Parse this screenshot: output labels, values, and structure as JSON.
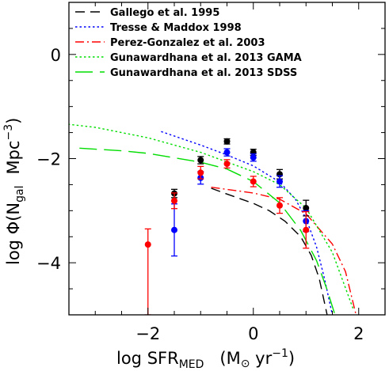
{
  "chart_data": {
    "type": "line",
    "xlabel": "log SFR_MED (M_sun yr^-1)",
    "ylabel": "log Phi(N_gal Mpc^-3)",
    "xlim": [
      -3.5,
      2.5
    ],
    "ylim": [
      -5.0,
      1.0
    ],
    "x_ticks": [
      -2,
      0,
      2
    ],
    "y_ticks": [
      0,
      -2,
      -4
    ],
    "x_tick_labels": [
      "−2",
      "0",
      "2"
    ],
    "y_tick_labels": [
      "0",
      "−2",
      "−4"
    ],
    "legend_position": "top",
    "series": [
      {
        "name": "Gallego et al. 1995",
        "color": "#000000",
        "style": "dashed",
        "x": [
          -0.8,
          -0.5,
          0.0,
          0.3,
          0.6,
          0.9,
          1.1,
          1.25,
          1.4
        ],
        "y": [
          -2.57,
          -2.68,
          -2.86,
          -3.0,
          -3.2,
          -3.5,
          -3.86,
          -4.3,
          -5.0
        ]
      },
      {
        "name": "Tresse & Maddox 1998",
        "color": "#0000ff",
        "style": "dotted",
        "x": [
          -1.75,
          -1.0,
          -0.5,
          0.0,
          0.5,
          0.8,
          1.0,
          1.2,
          1.35,
          1.5
        ],
        "y": [
          -1.48,
          -1.74,
          -1.93,
          -2.14,
          -2.45,
          -2.78,
          -3.15,
          -3.7,
          -4.3,
          -5.0
        ]
      },
      {
        "name": "Perez-Gonzalez et al. 2003",
        "color": "#ff0000",
        "style": "dashdot",
        "x": [
          -0.8,
          0.0,
          0.5,
          1.0,
          1.5,
          1.75,
          1.95
        ],
        "y": [
          -2.55,
          -2.66,
          -2.78,
          -3.06,
          -3.64,
          -4.17,
          -5.0
        ]
      },
      {
        "name": "Gunawardhana et al. 2013 GAMA",
        "color": "#00dd00",
        "style": "dotted",
        "x": [
          -3.6,
          -3.0,
          -2.0,
          -1.0,
          0.0,
          0.5,
          1.0,
          1.5,
          1.9
        ],
        "y": [
          -1.33,
          -1.4,
          -1.6,
          -1.88,
          -2.25,
          -2.5,
          -2.95,
          -3.8,
          -4.9
        ]
      },
      {
        "name": "Gunawardhana et al. 2013 SDSS",
        "color": "#00dd00",
        "style": "longdash",
        "x": [
          -3.3,
          -2.5,
          -2.0,
          -1.0,
          -0.5,
          0.0,
          0.5,
          0.9,
          1.2,
          1.4,
          1.55
        ],
        "y": [
          -1.8,
          -1.85,
          -1.9,
          -2.07,
          -2.2,
          -2.44,
          -2.85,
          -3.38,
          -3.96,
          -4.52,
          -5.0
        ]
      }
    ],
    "points": [
      {
        "color": "#000000",
        "x": [
          -1.5,
          -1.0,
          -0.5,
          0.0,
          0.5,
          1.0
        ],
        "y": [
          -2.67,
          -2.03,
          -1.67,
          -1.88,
          -2.3,
          -2.95
        ],
        "err": [
          0.08,
          0.07,
          0.05,
          0.06,
          0.09,
          0.15
        ]
      },
      {
        "color": "#0000ff",
        "x": [
          -1.5,
          -1.0,
          -0.5,
          0.0,
          0.5,
          1.0
        ],
        "y": [
          -3.37,
          -2.37,
          -1.88,
          -1.98,
          -2.44,
          -3.2
        ],
        "err": [
          0.5,
          0.12,
          0.07,
          0.07,
          0.11,
          0.2
        ]
      },
      {
        "color": "#ff0000",
        "x": [
          -2.0,
          -1.5,
          -1.0,
          -0.5,
          0.0,
          0.5,
          1.0
        ],
        "y": [
          -3.65,
          -2.81,
          -2.27,
          -2.1,
          -2.44,
          -2.9,
          -3.37
        ],
        "err_up": [
          0.3,
          0.15,
          0.12,
          0.08,
          0.1,
          0.15,
          0.35
        ],
        "err_down": [
          1.35,
          0.15,
          0.12,
          0.08,
          0.1,
          0.15,
          0.35
        ]
      }
    ]
  }
}
